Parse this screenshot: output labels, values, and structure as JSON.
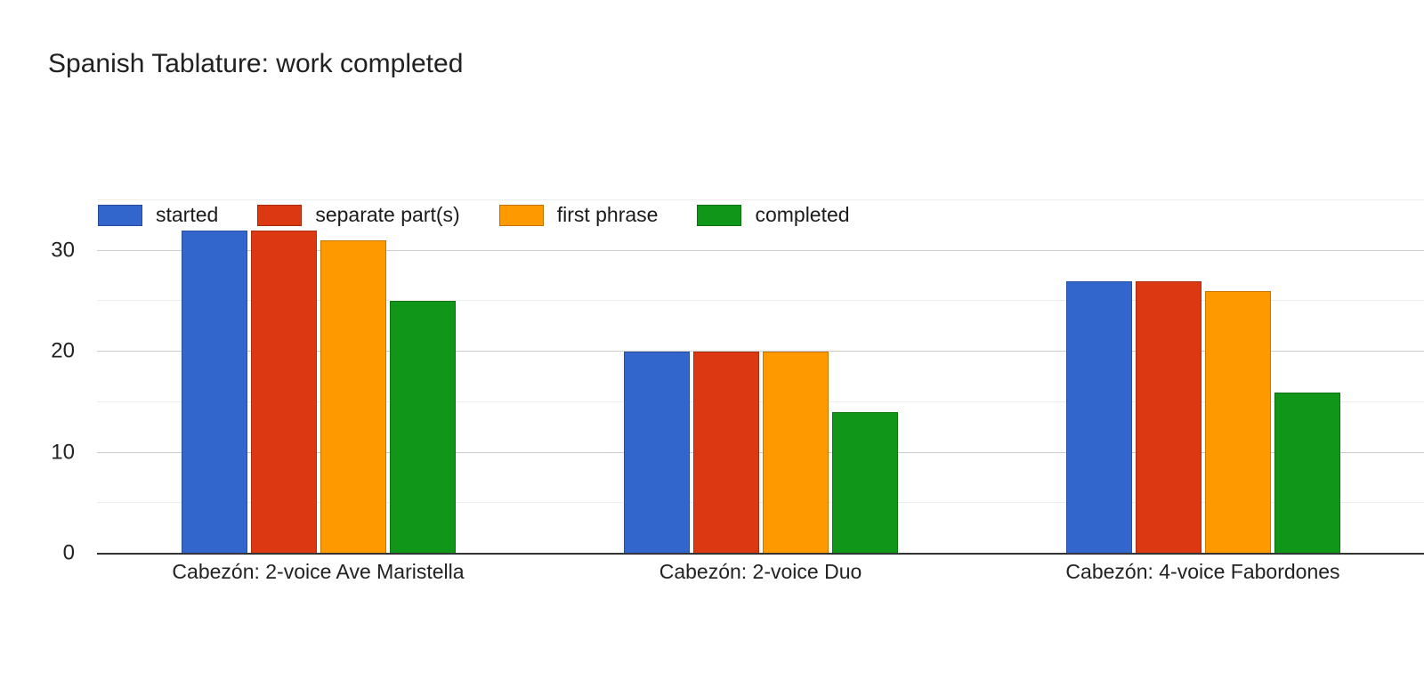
{
  "chart": {
    "title": "Spanish Tablature: work completed"
  },
  "chart_data": {
    "type": "bar",
    "title": "Spanish Tablature: work completed",
    "categories": [
      "Cabezón: 2-voice Ave Maristella",
      "Cabezón: 2-voice Duo",
      "Cabezón: 4-voice Fabordones"
    ],
    "series": [
      {
        "name": "started",
        "color": "#3366cc",
        "values": [
          32,
          20,
          27
        ]
      },
      {
        "name": "separate part(s)",
        "color": "#dc3912",
        "values": [
          32,
          20,
          27
        ]
      },
      {
        "name": "first phrase",
        "color": "#ff9900",
        "values": [
          31,
          20,
          26
        ]
      },
      {
        "name": "completed",
        "color": "#109618",
        "values": [
          25,
          14,
          16
        ]
      }
    ],
    "xlabel": "",
    "ylabel": "",
    "ylim": [
      0,
      35
    ],
    "yticks": [
      0,
      10,
      20,
      30
    ],
    "grid": "on",
    "grid_minor_step": 5,
    "grid_major_step": 10,
    "legend_position": "top-inside",
    "colors": {
      "grid_major": "#cccccc",
      "grid_minor": "#ededed",
      "axis_line": "#333333",
      "text": "#222222"
    }
  }
}
